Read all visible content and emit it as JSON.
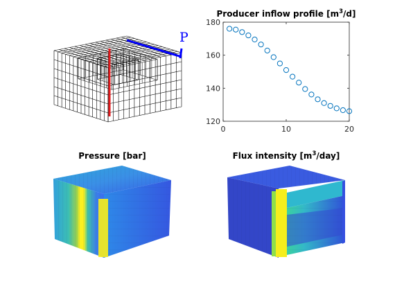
{
  "figure": {
    "grid_panel": {
      "well_label": "P",
      "colors": {
        "grid": "#000000",
        "injector_well": "#e31a1c",
        "producer_well": "#0000ff"
      }
    },
    "pressure_panel": {
      "title": "Pressure [bar]"
    },
    "flux_panel": {
      "title_prefix": "Flux intensity [m",
      "title_sup": "3",
      "title_suffix": "/day]"
    }
  },
  "chart_data": {
    "type": "scatter",
    "title": "Producer inflow profile [m3/d]",
    "title_prefix": "Producer inflow profile [m",
    "title_sup": "3",
    "title_suffix": "/d]",
    "xlabel": "",
    "ylabel": "",
    "xlim": [
      0,
      20
    ],
    "ylim": [
      120,
      180
    ],
    "xticks": [
      0,
      10,
      20
    ],
    "yticks": [
      120,
      140,
      160,
      180
    ],
    "marker": "open-circle",
    "color": "#0072bd",
    "grid": false,
    "x": [
      1,
      2,
      3,
      4,
      5,
      6,
      7,
      8,
      9,
      10,
      11,
      12,
      13,
      14,
      15,
      16,
      17,
      18,
      19,
      20
    ],
    "y": [
      176,
      175.5,
      174,
      172,
      169.5,
      166.5,
      162.8,
      158.8,
      155,
      151,
      147,
      143.4,
      139.5,
      136.2,
      133.3,
      131,
      129.3,
      127.8,
      126.7,
      126.1
    ]
  }
}
